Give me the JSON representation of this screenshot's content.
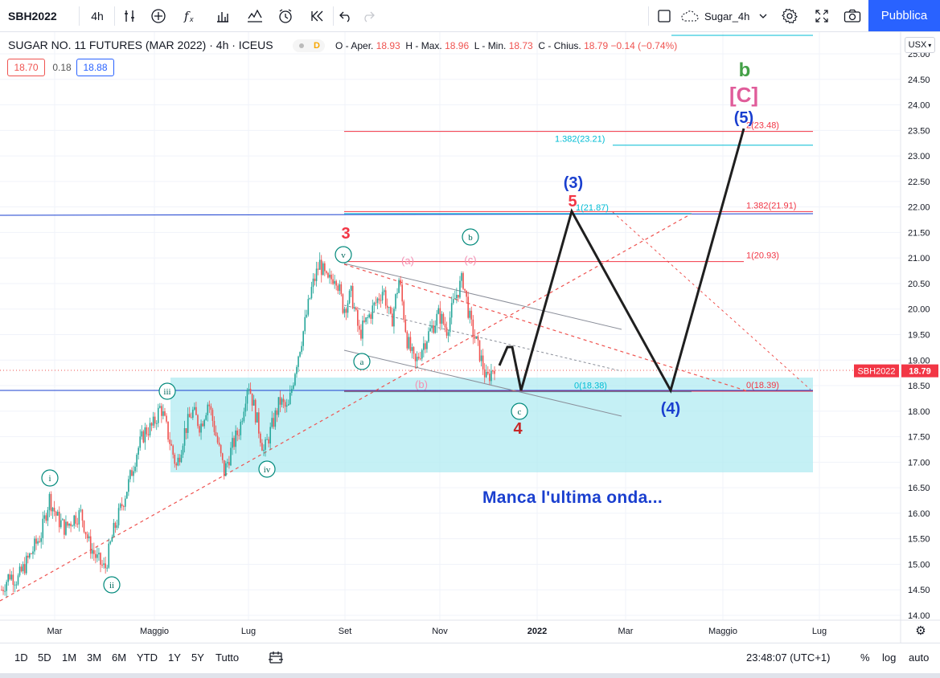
{
  "toolbar": {
    "symbol": "SBH2022",
    "interval": "4h",
    "layout_name": "Sugar_4h",
    "publish_label": "Pubblica",
    "icons": [
      "indicators-compare-icon",
      "add-symbol-icon",
      "fx-icon",
      "bar-style-icon",
      "indicators-icon",
      "alert-icon",
      "replay-icon",
      "undo-icon",
      "redo-icon",
      "square-icon",
      "cloud-icon",
      "chevron-down-icon",
      "gear-icon",
      "fullscreen-icon",
      "camera-icon"
    ]
  },
  "legend": {
    "title": "SUGAR NO. 11 FUTURES (MAR 2022) · 4h · ICEUS",
    "badge": "D",
    "ohlc": {
      "open_label": "O - Aper.",
      "open": "18.93",
      "high_label": "H - Max.",
      "high": "18.96",
      "low_label": "L - Min.",
      "low": "18.73",
      "close_label": "C - Chius.",
      "close": "18.79",
      "change": "−0.14 (−0.74%)"
    },
    "bid": "18.70",
    "spread": "0.18",
    "ask": "18.88",
    "currency": "USX"
  },
  "annotation_text": "Manca l'ultima onda...",
  "colors": {
    "up": "#26a69a",
    "down": "#ef5350",
    "fib_red": "#f23645",
    "fib_cyan": "#00bcd4",
    "wave_blue": "#1a3fcf",
    "wave_green": "#43a047",
    "wave_pink": "#e05c9a",
    "zone": "#b2ebf2"
  },
  "chart_data": {
    "type": "candlestick",
    "y_axis": {
      "min": 14.0,
      "max": 25.0,
      "ticks": [
        "14.00",
        "14.50",
        "15.00",
        "15.50",
        "16.00",
        "16.50",
        "17.00",
        "17.50",
        "18.00",
        "18.50",
        "19.00",
        "19.50",
        "20.00",
        "20.50",
        "21.00",
        "21.50",
        "22.00",
        "22.50",
        "23.00",
        "23.50",
        "24.00",
        "24.50",
        "25.00"
      ]
    },
    "x_axis": {
      "ticks": [
        "Mar",
        "Maggio",
        "Lug",
        "Set",
        "Nov",
        "2022",
        "Mar",
        "Maggio",
        "Lug"
      ]
    },
    "price_path": [
      14.5,
      14.8,
      14.7,
      15.0,
      15.3,
      15.6,
      16.3,
      15.9,
      15.7,
      15.9,
      16.0,
      15.4,
      15.1,
      14.9,
      15.6,
      16.1,
      16.6,
      17.2,
      17.6,
      17.7,
      18.1,
      17.5,
      16.9,
      17.6,
      18.0,
      17.7,
      18.2,
      17.5,
      16.8,
      17.3,
      17.7,
      18.6,
      17.9,
      17.2,
      17.7,
      18.2,
      18.0,
      18.9,
      19.6,
      20.4,
      20.9,
      20.5,
      20.7,
      20.0,
      20.3,
      19.5,
      19.8,
      20.1,
      20.4,
      19.7,
      20.6,
      19.4,
      18.9,
      19.3,
      19.6,
      19.9,
      19.6,
      20.2,
      20.6,
      19.7,
      19.2,
      18.6,
      18.9
    ],
    "current_price": "18.79",
    "current_price_label": "SBH2022",
    "fib_lines": [
      {
        "label": "2(23.48)",
        "value": 23.48,
        "color": "#f23645"
      },
      {
        "label": "1.382(23.21)",
        "value": 23.21,
        "color": "#00bcd4"
      },
      {
        "label": "1.382(21.91)",
        "value": 21.91,
        "color": "#f23645"
      },
      {
        "label": "1(21.87)",
        "value": 21.87,
        "color": "#00bcd4"
      },
      {
        "label": "1(20.93)",
        "value": 20.93,
        "color": "#f23645"
      },
      {
        "label": "0(18.38)",
        "value": 18.38,
        "color": "#00bcd4"
      },
      {
        "label": "0(18.39)",
        "value": 18.39,
        "color": "#f23645"
      }
    ],
    "wave_labels": [
      {
        "text": "b",
        "color": "#43a047",
        "size": 24
      },
      {
        "text": "[C]",
        "color": "#e05c9a",
        "size": 26
      },
      {
        "text": "(5)",
        "color": "#1a3fcf",
        "size": 20
      },
      {
        "text": "(3)",
        "color": "#1a3fcf",
        "size": 20
      },
      {
        "text": "5",
        "color": "#f23645",
        "size": 20
      },
      {
        "text": "3",
        "color": "#f23645",
        "size": 20
      },
      {
        "text": "(4)",
        "color": "#1a3fcf",
        "size": 20
      },
      {
        "text": "4",
        "color": "#c62828",
        "size": 20
      },
      {
        "text": "(a)",
        "color": "#f48fb1",
        "size": 13
      },
      {
        "text": "(c)",
        "color": "#f48fb1",
        "size": 13
      },
      {
        "text": "(b)",
        "color": "#f48fb1",
        "size": 13
      }
    ],
    "circle_labels": [
      "i",
      "ii",
      "iii",
      "iv",
      "v",
      "a",
      "b",
      "c"
    ]
  },
  "bottom": {
    "ranges": [
      "1D",
      "5D",
      "1M",
      "3M",
      "6M",
      "YTD",
      "1Y",
      "5Y",
      "Tutto"
    ],
    "clock": "23:48:07 (UTC+1)",
    "pct": "%",
    "log": "log",
    "auto": "auto"
  }
}
